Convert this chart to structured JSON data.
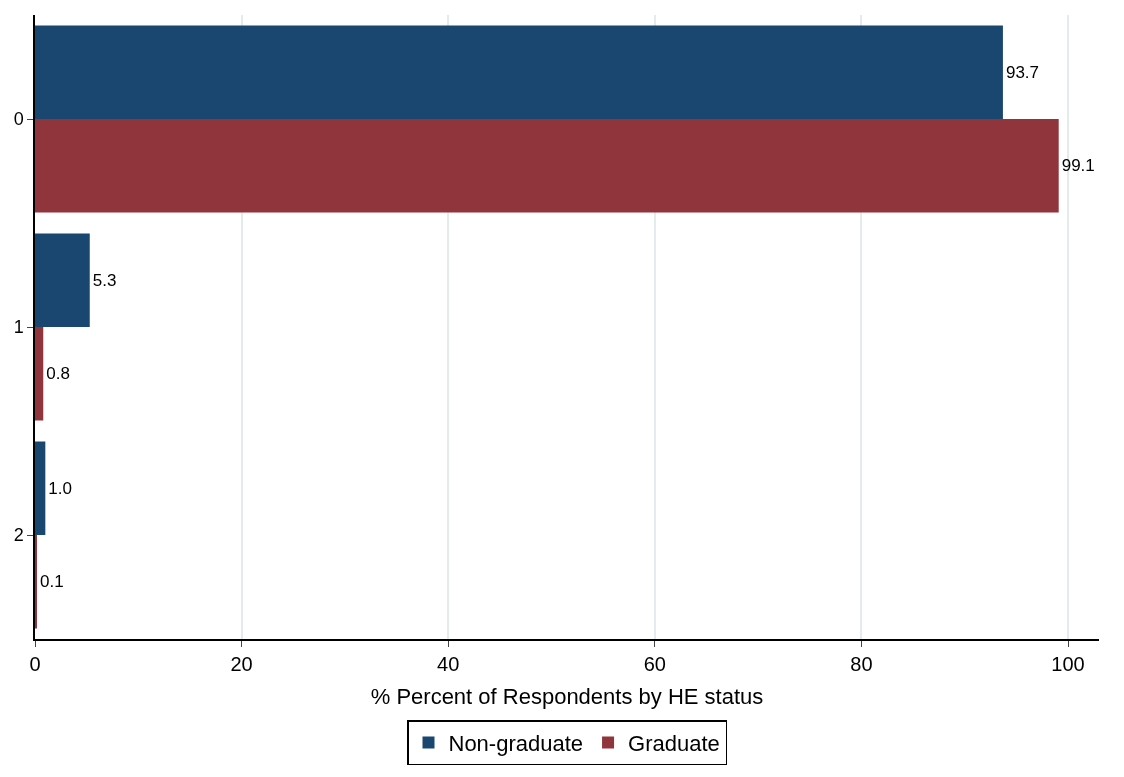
{
  "chart_data": {
    "type": "bar",
    "orientation": "horizontal",
    "xlabel": "% Percent of Respondents by HE status",
    "categories": [
      "0",
      "1",
      "2"
    ],
    "series": [
      {
        "name": "Non-graduate",
        "color": "#1a476f",
        "values": [
          93.7,
          5.3,
          1.0
        ],
        "value_labels": [
          "93.7",
          "5.3",
          "1.0"
        ]
      },
      {
        "name": "Graduate",
        "color": "#90353b",
        "values": [
          99.1,
          0.8,
          0.1
        ],
        "value_labels": [
          "99.1",
          "0.8",
          "0.1"
        ]
      }
    ],
    "xlim": [
      0,
      103
    ],
    "xticks": [
      0,
      20,
      40,
      60,
      80,
      100
    ],
    "grid": "x",
    "legend": "bottom"
  }
}
